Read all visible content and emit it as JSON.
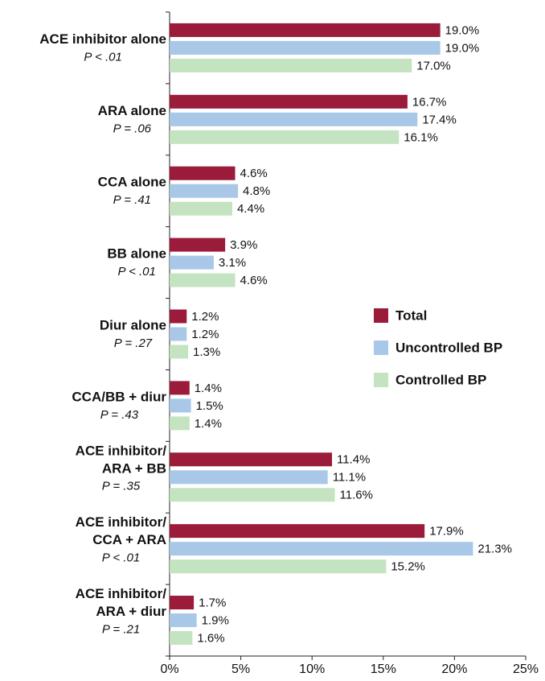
{
  "chart_data": {
    "type": "bar",
    "orientation": "horizontal",
    "categories": [
      [
        "ACE inhibitor alone"
      ],
      [
        "ARA alone"
      ],
      [
        "CCA alone"
      ],
      [
        "BB alone"
      ],
      [
        "Diur alone"
      ],
      [
        "CCA/BB + diur"
      ],
      [
        "ACE inhibitor/",
        "ARA + BB"
      ],
      [
        "ACE inhibitor/",
        "CCA + ARA"
      ],
      [
        "ACE inhibitor/",
        "ARA + diur"
      ]
    ],
    "p_values": [
      "P < .01",
      "P = .06",
      "P = .41",
      "P < .01",
      "P = .27",
      "P = .43",
      "P = .35",
      "P < .01",
      "P = .21"
    ],
    "series": [
      {
        "name": "Total",
        "color": "#9b1b3a",
        "values": [
          19.0,
          16.7,
          4.6,
          3.9,
          1.2,
          1.4,
          11.4,
          17.9,
          1.7
        ],
        "value_labels": [
          "19.0%",
          "16.7%",
          "4.6%",
          "3.9%",
          "1.2%",
          "1.4%",
          "11.4%",
          "17.9%",
          "1.7%"
        ]
      },
      {
        "name": "Uncontrolled BP",
        "color": "#a9c8e8",
        "values": [
          19.0,
          17.4,
          4.8,
          3.1,
          1.2,
          1.5,
          11.1,
          21.3,
          1.9
        ],
        "value_labels": [
          "19.0%",
          "17.4%",
          "4.8%",
          "3.1%",
          "1.2%",
          "1.5%",
          "11.1%",
          "21.3%",
          "1.9%"
        ]
      },
      {
        "name": "Controlled BP",
        "color": "#c4e3c0",
        "values": [
          17.0,
          16.1,
          4.4,
          4.6,
          1.3,
          1.4,
          11.6,
          15.2,
          1.6
        ],
        "value_labels": [
          "17.0%",
          "16.1%",
          "4.4%",
          "4.6%",
          "1.3%",
          "1.4%",
          "11.6%",
          "15.2%",
          "1.6%"
        ]
      }
    ],
    "xlim": [
      0,
      25
    ],
    "xticks": [
      {
        "value": 0,
        "label": "0%"
      },
      {
        "value": 5,
        "label": "5%"
      },
      {
        "value": 10,
        "label": "10%"
      },
      {
        "value": 15,
        "label": "15%"
      },
      {
        "value": 20,
        "label": "20%"
      },
      {
        "value": 25,
        "label": "25%"
      }
    ],
    "legend": "right"
  }
}
